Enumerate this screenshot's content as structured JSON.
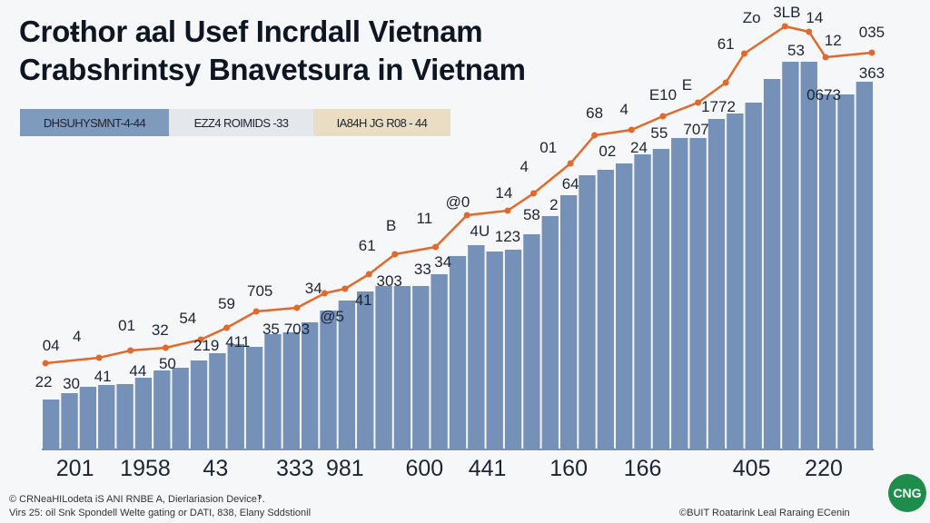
{
  "chart_data": {
    "type": "bar",
    "title": "Croŧhor aal Usef Incrdall Vietnam",
    "subtitle": "Crabshrintsy Bnavetsura in Vietnam",
    "legend": [
      {
        "label": "DHSUHYSMNT-4-44",
        "color": "#7e9abd"
      },
      {
        "label": "EZZ4 ROIMIDS -33",
        "color": "#e4e7eb"
      },
      {
        "label": "IA84H JG R08 - 44",
        "color": "#e9dec3"
      }
    ],
    "legend_placement": "top-left",
    "xlim": [
      0,
      45
    ],
    "ylim": [
      0,
      500
    ],
    "grid": false,
    "series": [
      {
        "name": "bars",
        "type": "bar",
        "color": "#7591b7",
        "values": [
          55,
          62,
          69,
          71,
          72,
          79,
          87,
          90,
          98,
          106,
          116,
          113,
          127,
          129,
          140,
          153,
          164,
          174,
          180,
          180,
          180,
          193,
          213,
          225,
          218,
          220,
          237,
          257,
          280,
          302,
          308,
          315,
          325,
          331,
          343,
          343,
          364,
          370,
          382,
          408,
          427,
          427,
          391,
          391,
          405
        ]
      },
      {
        "name": "line",
        "type": "line",
        "color": "#e2692a",
        "x": [
          0.2,
          3.1,
          4.8,
          6.7,
          8.6,
          10.0,
          11.6,
          13.8,
          15.3,
          16.4,
          17.7,
          19.1,
          21.3,
          23.0,
          25.2,
          26.6,
          28.6,
          29.9,
          31.9,
          33.6,
          35.5,
          37.0,
          38.0,
          40.2,
          41.5,
          42.4,
          44.9
        ],
        "values": [
          95,
          101,
          109,
          112,
          121,
          134,
          152,
          156,
          172,
          177,
          193,
          215,
          223,
          258,
          263,
          282,
          315,
          346,
          352,
          367,
          382,
          404,
          436,
          466,
          460,
          432,
          437
        ]
      }
    ],
    "annotations": [
      {
        "text": "22",
        "x": 0.1,
        "y": 75
      },
      {
        "text": "30",
        "x": 1.6,
        "y": 73
      },
      {
        "text": "41",
        "x": 3.3,
        "y": 81
      },
      {
        "text": "44",
        "x": 5.2,
        "y": 87
      },
      {
        "text": "50",
        "x": 6.8,
        "y": 95
      },
      {
        "text": "219",
        "x": 8.9,
        "y": 115
      },
      {
        "text": "411",
        "x": 10.6,
        "y": 119
      },
      {
        "text": "35",
        "x": 12.4,
        "y": 133
      },
      {
        "text": "703",
        "x": 13.8,
        "y": 133
      },
      {
        "text": "@5",
        "x": 15.7,
        "y": 147
      },
      {
        "text": "41",
        "x": 17.4,
        "y": 165
      },
      {
        "text": "303",
        "x": 18.8,
        "y": 186
      },
      {
        "text": "33",
        "x": 20.6,
        "y": 199
      },
      {
        "text": "34",
        "x": 21.7,
        "y": 207
      },
      {
        "text": "4U",
        "x": 23.7,
        "y": 241
      },
      {
        "text": "123",
        "x": 25.2,
        "y": 235
      },
      {
        "text": "58",
        "x": 26.5,
        "y": 259
      },
      {
        "text": "2",
        "x": 27.7,
        "y": 270
      },
      {
        "text": "64",
        "x": 28.6,
        "y": 293
      },
      {
        "text": "02",
        "x": 30.6,
        "y": 329
      },
      {
        "text": "24",
        "x": 32.3,
        "y": 333
      },
      {
        "text": "55",
        "x": 33.4,
        "y": 349
      },
      {
        "text": "707",
        "x": 35.4,
        "y": 353
      },
      {
        "text": "1772",
        "x": 36.6,
        "y": 378
      },
      {
        "text": "53",
        "x": 40.8,
        "y": 440
      },
      {
        "text": "0673",
        "x": 42.3,
        "y": 391
      },
      {
        "text": "363",
        "x": 44.9,
        "y": 415
      },
      {
        "text": "12",
        "x": 42.8,
        "y": 451
      },
      {
        "text": "035",
        "x": 44.9,
        "y": 460
      },
      {
        "text": "14",
        "x": 41.8,
        "y": 476
      },
      {
        "text": "3LB",
        "x": 40.3,
        "y": 482
      },
      {
        "text": "Zo",
        "x": 38.4,
        "y": 476
      },
      {
        "text": "61",
        "x": 37.0,
        "y": 447
      },
      {
        "text": "E10",
        "x": 33.6,
        "y": 391
      },
      {
        "text": "E",
        "x": 34.9,
        "y": 402
      },
      {
        "text": "68",
        "x": 29.9,
        "y": 371
      },
      {
        "text": "4",
        "x": 31.5,
        "y": 375
      },
      {
        "text": "01",
        "x": 27.4,
        "y": 333
      },
      {
        "text": "4",
        "x": 26.1,
        "y": 312
      },
      {
        "text": "14",
        "x": 25.0,
        "y": 283
      },
      {
        "text": "@0",
        "x": 22.5,
        "y": 273
      },
      {
        "text": "11",
        "x": 20.7,
        "y": 255
      },
      {
        "text": "B",
        "x": 18.9,
        "y": 247
      },
      {
        "text": "61",
        "x": 17.6,
        "y": 225
      },
      {
        "text": "34",
        "x": 14.7,
        "y": 178
      },
      {
        "text": "705",
        "x": 11.8,
        "y": 175
      },
      {
        "text": "59",
        "x": 10.0,
        "y": 161
      },
      {
        "text": "54",
        "x": 7.9,
        "y": 145
      },
      {
        "text": "01",
        "x": 4.6,
        "y": 137
      },
      {
        "text": "32",
        "x": 6.4,
        "y": 132
      },
      {
        "text": "4",
        "x": 1.9,
        "y": 125
      },
      {
        "text": "04",
        "x": 0.5,
        "y": 115
      }
    ],
    "x_tick_labels": [
      {
        "text": "201",
        "x": 1.8
      },
      {
        "text": "1958",
        "x": 5.6
      },
      {
        "text": "43",
        "x": 9.4
      },
      {
        "text": "333",
        "x": 13.7
      },
      {
        "text": "981",
        "x": 16.4
      },
      {
        "text": "600",
        "x": 20.7
      },
      {
        "text": "441",
        "x": 24.1
      },
      {
        "text": "160",
        "x": 28.5
      },
      {
        "text": "166",
        "x": 32.5
      },
      {
        "text": "405",
        "x": 38.4
      },
      {
        "text": "220",
        "x": 42.3
      }
    ]
  },
  "footer": {
    "line1": "© CRNeaHILodeta iS ANI RNBE A, Dierlariasion Device‽.",
    "line2": "Virs 25: oil Snk Spondell Welte gating or DATI, 838, Elany Sddstionil",
    "right": "©BUIT Roatarink Leal Raraing ECenin",
    "logo_text": "CNG"
  }
}
